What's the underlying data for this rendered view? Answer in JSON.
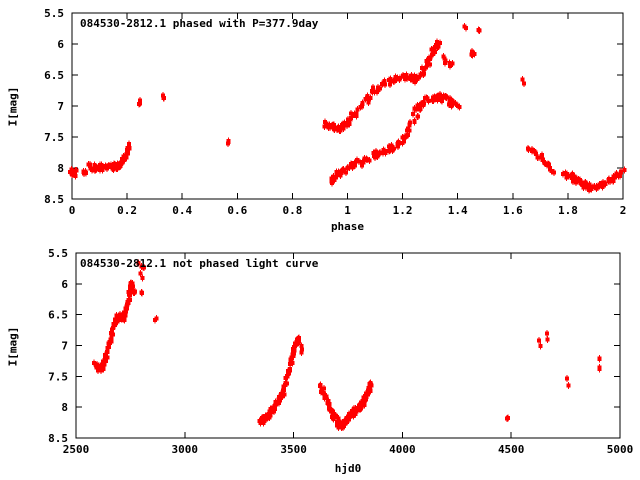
{
  "page": {
    "background": "#ffffff",
    "text_color": "#000000"
  },
  "chart_data": [
    {
      "panel": "top",
      "type": "scatter",
      "title": "084530-2812.1 phased with P=377.9day",
      "xlabel": "phase",
      "ylabel": "I[mag]",
      "xlim": [
        0,
        2
      ],
      "ylim": [
        8.5,
        5.5
      ],
      "grid": false,
      "legend": null,
      "color": "#ff0000",
      "marker": "filled-square-with-errorbar",
      "xticks": [
        {
          "v": 0,
          "label": "0"
        },
        {
          "v": 0.2,
          "label": "0.2"
        },
        {
          "v": 0.4,
          "label": "0.4"
        },
        {
          "v": 0.6,
          "label": "0.6"
        },
        {
          "v": 0.8,
          "label": "0.8"
        },
        {
          "v": 1,
          "label": "1"
        },
        {
          "v": 1.2,
          "label": "1.2"
        },
        {
          "v": 1.4,
          "label": "1.4"
        },
        {
          "v": 1.6,
          "label": "1.6"
        },
        {
          "v": 1.8,
          "label": "1.8"
        },
        {
          "v": 2,
          "label": "2"
        }
      ],
      "yticks": [
        {
          "v": 5.5,
          "label": "5.5"
        },
        {
          "v": 6,
          "label": "6"
        },
        {
          "v": 6.5,
          "label": "6.5"
        },
        {
          "v": 7,
          "label": "7"
        },
        {
          "v": 7.5,
          "label": "7.5"
        },
        {
          "v": 8,
          "label": "8"
        },
        {
          "v": 8.5,
          "label": "8.5"
        }
      ],
      "segments": [
        {
          "name": "cluster-phase0",
          "n": 8,
          "jx": 0.012,
          "jy": 0.06,
          "pts": [
            [
              0.004,
              8.05
            ],
            [
              0.012,
              8.09
            ]
          ]
        },
        {
          "name": "blob-0.05",
          "n": 5,
          "jx": 0.008,
          "jy": 0.05,
          "pts": [
            [
              0.048,
              8.02
            ],
            [
              0.053,
              8.06
            ]
          ]
        },
        {
          "name": "flat-0.07-0.18",
          "n": 42,
          "jx": 0.01,
          "jy": 0.05,
          "pts": [
            [
              0.066,
              7.99
            ],
            [
              0.09,
              8.0
            ],
            [
              0.115,
              7.99
            ],
            [
              0.14,
              7.99
            ],
            [
              0.165,
              7.97
            ],
            [
              0.178,
              7.94
            ]
          ]
        },
        {
          "name": "rise-0.2",
          "n": 16,
          "jx": 0.006,
          "jy": 0.05,
          "pts": [
            [
              0.18,
              7.92
            ],
            [
              0.19,
              7.84
            ],
            [
              0.2,
              7.74
            ],
            [
              0.212,
              7.66
            ]
          ]
        },
        {
          "name": "dot-0.25",
          "n": 3,
          "jx": 0.004,
          "jy": 0.04,
          "pts": [
            [
              0.246,
              6.96
            ],
            [
              0.25,
              6.93
            ]
          ]
        },
        {
          "name": "dot-0.33",
          "n": 3,
          "jx": 0.004,
          "jy": 0.04,
          "pts": [
            [
              0.328,
              6.87
            ],
            [
              0.333,
              6.84
            ]
          ]
        },
        {
          "name": "dot-0.57",
          "n": 3,
          "jx": 0.004,
          "jy": 0.05,
          "pts": [
            [
              0.567,
              7.58
            ],
            [
              0.57,
              7.62
            ]
          ]
        },
        {
          "name": "upper-branch",
          "n": 135,
          "jx": 0.008,
          "jy": 0.055,
          "pts": [
            [
              0.92,
              7.27
            ],
            [
              0.935,
              7.33
            ],
            [
              0.955,
              7.36
            ],
            [
              0.975,
              7.36
            ],
            [
              0.99,
              7.31
            ],
            [
              1.005,
              7.24
            ],
            [
              1.025,
              7.13
            ],
            [
              1.05,
              7.0
            ],
            [
              1.075,
              6.87
            ],
            [
              1.1,
              6.75
            ],
            [
              1.13,
              6.65
            ],
            [
              1.16,
              6.59
            ],
            [
              1.19,
              6.55
            ],
            [
              1.215,
              6.55
            ],
            [
              1.24,
              6.57
            ],
            [
              1.26,
              6.52
            ],
            [
              1.278,
              6.43
            ],
            [
              1.295,
              6.3
            ],
            [
              1.31,
              6.15
            ],
            [
              1.322,
              6.04
            ],
            [
              1.33,
              5.99
            ]
          ]
        },
        {
          "name": "blob-1.35",
          "n": 4,
          "jx": 0.006,
          "jy": 0.04,
          "pts": [
            [
              1.345,
              6.23
            ],
            [
              1.353,
              6.28
            ]
          ]
        },
        {
          "name": "blob-1.38",
          "n": 3,
          "jx": 0.004,
          "jy": 0.04,
          "pts": [
            [
              1.373,
              6.3
            ],
            [
              1.378,
              6.34
            ]
          ]
        },
        {
          "name": "blob-1.46",
          "n": 4,
          "jx": 0.005,
          "jy": 0.06,
          "pts": [
            [
              1.452,
              6.15
            ],
            [
              1.458,
              6.22
            ]
          ]
        },
        {
          "name": "dot-1.43-bright",
          "n": 2,
          "jx": 0.004,
          "jy": 0.03,
          "pts": [
            [
              1.423,
              5.73
            ],
            [
              1.428,
              5.76
            ]
          ]
        },
        {
          "name": "dot-1.47-bright",
          "n": 2,
          "jx": 0.004,
          "jy": 0.03,
          "pts": [
            [
              1.472,
              5.77
            ],
            [
              1.477,
              5.8
            ]
          ]
        },
        {
          "name": "dot-1.63",
          "n": 2,
          "jx": 0.003,
          "jy": 0.03,
          "pts": [
            [
              1.633,
              6.57
            ],
            [
              1.637,
              6.61
            ]
          ]
        },
        {
          "name": "lower-branch",
          "n": 125,
          "jx": 0.008,
          "jy": 0.055,
          "pts": [
            [
              0.938,
              8.19
            ],
            [
              0.955,
              8.13
            ],
            [
              0.975,
              8.08
            ],
            [
              1.0,
              8.02
            ],
            [
              1.03,
              7.95
            ],
            [
              1.06,
              7.88
            ],
            [
              1.09,
              7.82
            ],
            [
              1.12,
              7.76
            ],
            [
              1.15,
              7.71
            ],
            [
              1.175,
              7.66
            ],
            [
              1.195,
              7.58
            ],
            [
              1.215,
              7.46
            ],
            [
              1.232,
              7.3
            ],
            [
              1.25,
              7.1
            ],
            [
              1.268,
              6.98
            ],
            [
              1.29,
              6.91
            ],
            [
              1.315,
              6.87
            ],
            [
              1.34,
              6.86
            ],
            [
              1.36,
              6.89
            ],
            [
              1.378,
              6.95
            ],
            [
              1.388,
              6.97
            ]
          ]
        },
        {
          "name": "dot-1.4",
          "n": 2,
          "jx": 0.003,
          "jy": 0.03,
          "pts": [
            [
              1.403,
              7.0
            ],
            [
              1.407,
              7.04
            ]
          ]
        },
        {
          "name": "decline-1.7",
          "n": 22,
          "jx": 0.006,
          "jy": 0.04,
          "pts": [
            [
              1.655,
              7.67
            ],
            [
              1.675,
              7.73
            ],
            [
              1.695,
              7.81
            ],
            [
              1.703,
              7.85
            ],
            [
              1.72,
              7.92
            ],
            [
              1.735,
              7.97
            ],
            [
              1.747,
              8.04
            ]
          ]
        },
        {
          "name": "minimum-1.9",
          "n": 65,
          "jx": 0.009,
          "jy": 0.05,
          "pts": [
            [
              1.79,
              8.09
            ],
            [
              1.815,
              8.16
            ],
            [
              1.84,
              8.23
            ],
            [
              1.862,
              8.28
            ],
            [
              1.88,
              8.31
            ],
            [
              1.9,
              8.3
            ],
            [
              1.925,
              8.25
            ],
            [
              1.95,
              8.2
            ],
            [
              1.975,
              8.14
            ],
            [
              2.0,
              8.08
            ]
          ]
        }
      ]
    },
    {
      "panel": "bottom",
      "type": "scatter",
      "title": "084530-2812.1 not phased light curve",
      "xlabel": "hjd0",
      "ylabel": "I[mag]",
      "xlim": [
        2500,
        5000
      ],
      "ylim": [
        8.5,
        5.5
      ],
      "grid": false,
      "legend": null,
      "color": "#ff0000",
      "marker": "filled-square-with-errorbar",
      "xticks": [
        {
          "v": 2500,
          "label": "2500"
        },
        {
          "v": 3000,
          "label": "3000"
        },
        {
          "v": 3500,
          "label": "3500"
        },
        {
          "v": 4000,
          "label": "4000"
        },
        {
          "v": 4500,
          "label": "4500"
        },
        {
          "v": 5000,
          "label": "5000"
        }
      ],
      "yticks": [
        {
          "v": 5.5,
          "label": "5.5"
        },
        {
          "v": 6,
          "label": "6"
        },
        {
          "v": 6.5,
          "label": "6.5"
        },
        {
          "v": 7,
          "label": "7"
        },
        {
          "v": 7.5,
          "label": "7.5"
        },
        {
          "v": 8,
          "label": "8"
        },
        {
          "v": 8.5,
          "label": "8.5"
        }
      ],
      "segments": [
        {
          "name": "rise-2600-2760",
          "n": 115,
          "jx": 6,
          "jy": 0.05,
          "pts": [
            [
              2588,
              7.32
            ],
            [
              2600,
              7.36
            ],
            [
              2612,
              7.37
            ],
            [
              2624,
              7.33
            ],
            [
              2634,
              7.22
            ],
            [
              2645,
              7.07
            ],
            [
              2656,
              6.93
            ],
            [
              2668,
              6.78
            ],
            [
              2680,
              6.63
            ],
            [
              2692,
              6.55
            ],
            [
              2705,
              6.53
            ],
            [
              2716,
              6.55
            ],
            [
              2726,
              6.47
            ],
            [
              2735,
              6.33
            ],
            [
              2744,
              6.18
            ],
            [
              2752,
              6.06
            ],
            [
              2758,
              5.99
            ]
          ]
        },
        {
          "name": "post-peak-2765",
          "n": 4,
          "jx": 4,
          "jy": 0.05,
          "pts": [
            [
              2763,
              6.1
            ],
            [
              2768,
              6.17
            ]
          ]
        },
        {
          "name": "peak-scatter-2800",
          "n": 6,
          "jx": 8,
          "jy": 0.08,
          "pts": [
            [
              2792,
              5.72
            ],
            [
              2800,
              5.78
            ],
            [
              2810,
              5.84
            ]
          ]
        },
        {
          "name": "dot-2803",
          "n": 2,
          "jx": 3,
          "jy": 0.04,
          "pts": [
            [
              2802,
              6.14
            ],
            [
              2805,
              6.18
            ]
          ]
        },
        {
          "name": "dot-2868",
          "n": 2,
          "jx": 3,
          "jy": 0.04,
          "pts": [
            [
              2866,
              6.57
            ],
            [
              2870,
              6.6
            ]
          ]
        },
        {
          "name": "rise-3350-3525",
          "n": 95,
          "jx": 6,
          "jy": 0.05,
          "pts": [
            [
              3347,
              8.2
            ],
            [
              3360,
              8.22
            ],
            [
              3374,
              8.18
            ],
            [
              3390,
              8.11
            ],
            [
              3406,
              8.03
            ],
            [
              3422,
              7.94
            ],
            [
              3438,
              7.85
            ],
            [
              3452,
              7.75
            ],
            [
              3464,
              7.63
            ],
            [
              3475,
              7.48
            ],
            [
              3486,
              7.32
            ],
            [
              3496,
              7.15
            ],
            [
              3506,
              7.02
            ],
            [
              3515,
              6.94
            ],
            [
              3524,
              6.91
            ]
          ]
        },
        {
          "name": "blob-3535",
          "n": 3,
          "jx": 3,
          "jy": 0.05,
          "pts": [
            [
              3533,
              7.03
            ],
            [
              3537,
              7.08
            ]
          ]
        },
        {
          "name": "dip-3625-3856",
          "n": 110,
          "jx": 6,
          "jy": 0.055,
          "pts": [
            [
              3625,
              7.67
            ],
            [
              3640,
              7.78
            ],
            [
              3653,
              7.89
            ],
            [
              3665,
              7.99
            ],
            [
              3678,
              8.1
            ],
            [
              3692,
              8.19
            ],
            [
              3706,
              8.27
            ],
            [
              3720,
              8.31
            ],
            [
              3734,
              8.27
            ],
            [
              3748,
              8.2
            ],
            [
              3762,
              8.13
            ],
            [
              3776,
              8.08
            ],
            [
              3790,
              8.05
            ],
            [
              3803,
              8.01
            ],
            [
              3816,
              7.94
            ],
            [
              3828,
              7.87
            ],
            [
              3840,
              7.79
            ],
            [
              3850,
              7.7
            ],
            [
              3856,
              7.63
            ]
          ]
        },
        {
          "name": "dot-4483",
          "n": 2,
          "jx": 3,
          "jy": 0.04,
          "pts": [
            [
              4481,
              8.15
            ],
            [
              4485,
              8.19
            ]
          ]
        },
        {
          "name": "dot-4630",
          "n": 2,
          "jx": 3,
          "jy": 0.04,
          "pts": [
            [
              4628,
              6.94
            ],
            [
              4632,
              6.98
            ]
          ]
        },
        {
          "name": "dot-4668",
          "n": 2,
          "jx": 3,
          "jy": 0.04,
          "pts": [
            [
              4666,
              6.83
            ],
            [
              4670,
              6.87
            ]
          ]
        },
        {
          "name": "dot-4760",
          "n": 2,
          "jx": 3,
          "jy": 0.04,
          "pts": [
            [
              4758,
              7.57
            ],
            [
              4762,
              7.61
            ]
          ]
        },
        {
          "name": "dot-4905-lower",
          "n": 2,
          "jx": 3,
          "jy": 0.04,
          "pts": [
            [
              4903,
              7.2
            ],
            [
              4907,
              7.24
            ]
          ]
        },
        {
          "name": "dot-4905-upper",
          "n": 2,
          "jx": 3,
          "jy": 0.04,
          "pts": [
            [
              4903,
              7.34
            ],
            [
              4907,
              7.38
            ]
          ]
        }
      ]
    }
  ]
}
